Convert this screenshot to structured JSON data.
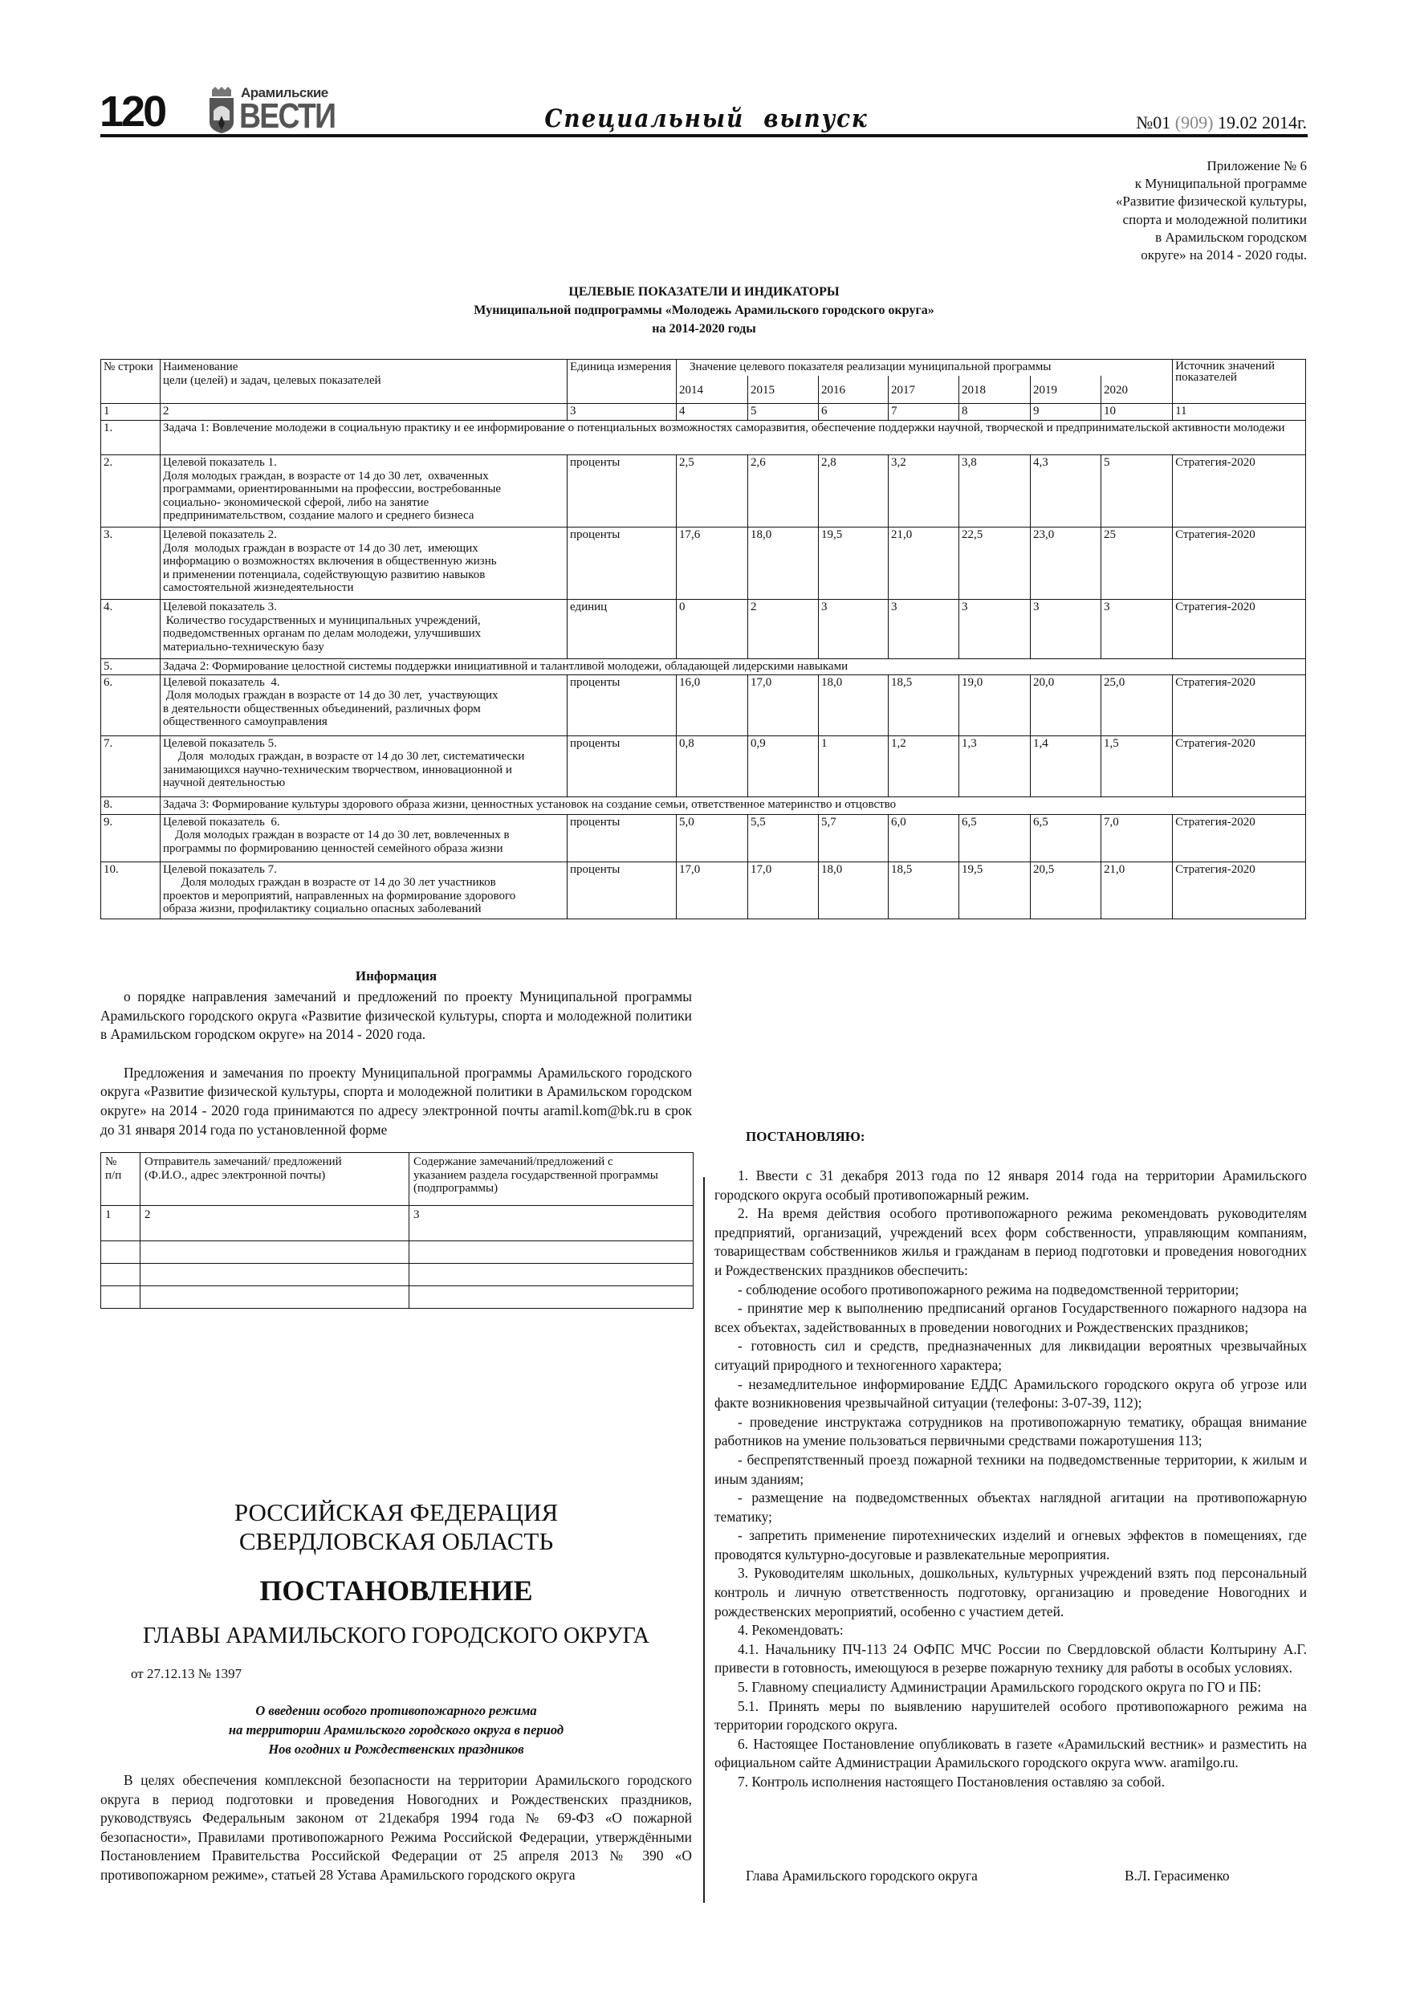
{
  "header": {
    "page_number": "120",
    "logo": {
      "line1": "Арамильские",
      "line2": "ВЕСТИ"
    },
    "section": "Специальный выпуск",
    "issue_prefix": "№01 ",
    "issue_total": "(909)",
    "issue_date": " 19.02 2014г."
  },
  "appendix": [
    "Приложение № 6",
    "к Муниципальной программе",
    "«Развитие физической культуры,",
    "спорта и молодежной политики",
    "в Арамильском городском",
    "округе» на 2014 - 2020 годы."
  ],
  "indicators": {
    "title": "ЦЕЛЕВЫЕ ПОКАЗАТЕЛИ И ИНДИКАТОРЫ",
    "subtitle": "Муниципальной подпрограммы «Молодежь Арамильского городского округа»",
    "period": "на 2014-2020 годы",
    "headers": {
      "row_no": "№ строки",
      "name": "Наименование\n цели (целей) и задач, целевых   показателей",
      "unit": "Единица измерения",
      "value_group": "Значение целевого показателя реализации   муниципальной программы",
      "years": [
        "2014",
        "2015",
        "2016",
        "2017",
        "2018",
        "2019",
        "2020"
      ],
      "source": "Источник значений показателей"
    },
    "column_numbers": [
      "1",
      "2",
      "3",
      "4",
      "5",
      "6",
      "7",
      "8",
      "9",
      "10",
      "11"
    ],
    "rows": [
      {
        "type": "task",
        "no": "1.",
        "text": "Задача 1: Вовлечение молодежи в социальную практику и ее информирование о потенциальных возможностях саморазвития, обеспечение поддержки научной, творческой и предпринимательской активности молодежи"
      },
      {
        "type": "indicator",
        "no": "2.",
        "text": "Целевой показатель 1.\nДоля молодых граждан, в возрасте от 14 до 30 лет,  охваченных\nпрограммами, ориентированными на профессии, востребованные\nсоциально- экономической сферой, либо на занятие\nпредпринимательством, создание малого и среднего бизнеса",
        "unit": "проценты",
        "values": [
          "2,5",
          "2,6",
          "2,8",
          "3,2",
          "3,8",
          "4,3",
          "5"
        ],
        "source": "Стратегия-2020"
      },
      {
        "type": "indicator",
        "no": "3.",
        "text": "Целевой показатель 2.\nДоля  молодых граждан в возрасте от 14 до 30 лет,  имеющих\nинформацию о возможностях включения в общественную жизнь\nи применении потенциала, содействующую развитию навыков\nсамостоятельной жизнедеятельности",
        "unit": "проценты",
        "values": [
          "17,6",
          "18,0",
          "19,5",
          "21,0",
          "22,5",
          "23,0",
          "25"
        ],
        "source": "Стратегия-2020"
      },
      {
        "type": "indicator",
        "no": "4.",
        "text": "Целевой показатель 3.\n Количество государственных и муниципальных учреждений,\nподведомственных органам по делам молодежи, улучшивших\nматериально-техническую базу",
        "unit": "единиц",
        "values": [
          "0",
          "2",
          "3",
          "3",
          "3",
          "3",
          "3"
        ],
        "source": "Стратегия-2020"
      },
      {
        "type": "task",
        "no": "5.",
        "text": "Задача 2:  Формирование  целостной системы поддержки инициативной и талантливой молодежи, обладающей лидерскими навыками"
      },
      {
        "type": "indicator",
        "no": "6.",
        "text": "Целевой показатель  4.\n Доля молодых граждан в возрасте от 14 до 30 лет,  участвующих\nв деятельности общественных объединений, различных форм\nобщественного самоуправления",
        "unit": "проценты",
        "values": [
          "16,0",
          "17,0",
          "18,0",
          "18,5",
          "19,0",
          "20,0",
          "25,0"
        ],
        "source": "Стратегия-2020"
      },
      {
        "type": "indicator",
        "no": "7.",
        "text": "Целевой показатель 5.\n     Доля  молодых граждан, в возрасте от 14 до 30 лет, систематически\nзанимающихся научно-техническим творчеством, инновационной и\nнаучной деятельностью",
        "unit": "проценты",
        "values": [
          "0,8",
          "0,9",
          "1",
          "1,2",
          "1,3",
          "1,4",
          "1,5"
        ],
        "source": "Стратегия-2020"
      },
      {
        "type": "task",
        "no": "8.",
        "text": "Задача  3:  Формирование культуры здорового образа жизни, ценностных установок на создание семьи, ответственное материнство и отцовство"
      },
      {
        "type": "indicator",
        "no": "9.",
        "text": "Целевой показатель  6.\n    Доля молодых граждан в возрасте от 14 до 30 лет, вовлеченных в\nпрограммы по формированию ценностей семейного образа жизни",
        "unit": "проценты",
        "values": [
          "5,0",
          "5,5",
          "5,7",
          "6,0",
          "6,5",
          "6,5",
          "7,0"
        ],
        "source": "Стратегия-2020"
      },
      {
        "type": "indicator",
        "no": "10.",
        "text": "Целевой показатель 7.\n      Доля молодых граждан в возрасте от 14 до 30 лет участников\nпроектов и мероприятий, направленных на формирование здорового\nобраза жизни, профилактику социально опасных заболеваний",
        "unit": "проценты",
        "values": [
          "17,0",
          "17,0",
          "18,0",
          "18,5",
          "19,5",
          "20,5",
          "21,0"
        ],
        "source": "Стратегия-2020"
      }
    ]
  },
  "information": {
    "title": "Информация",
    "paragraphs": [
      "о порядке направления замечаний и предложений по проекту Муниципальной программы Арамильского городского округа «Развитие физической культуры, спорта и молодежной политики в  Арамильском городском округе» на 2014 - 2020 года.",
      "Предложения и замечания по проекту Муниципальной программы Арамильского городского округа «Развитие физической культуры, спорта и молодежной политики в Арамильском городском округе» на 2014 - 2020 года принимаются по адресу электронной почты aramil.kom@bk.ru в срок до 31 января 2014 года по установленной форме"
    ],
    "form_table": {
      "headers": [
        "№\nп/п",
        "Отправитель замечаний/ предложений\n(Ф.И.О., адрес электронной почты)",
        "Содержание замечаний/предложений с\nуказанием раздела государственной программы\n(подпрограммы)"
      ],
      "numbers": [
        "1",
        "2",
        "3"
      ],
      "empty_rows": 3
    }
  },
  "decree": {
    "country": "РОССИЙСКАЯ ФЕДЕРАЦИЯ",
    "region": "СВЕРДЛОВСКАЯ ОБЛАСТЬ",
    "title": "ПОСТАНОВЛЕНИЕ",
    "issuer": "ГЛАВЫ АРАМИЛЬСКОГО ГОРОДСКОГО ОКРУГА",
    "date_number": "от 27.12.13 № 1397",
    "subject": [
      "О введении особого противопожарного режима",
      "на территории Арамильского городского округа в период",
      "Нов огодних и Рождественских  праздников"
    ],
    "preamble": "В целях обеспечения комплексной безопасности на территории Арамильского городского округа в период подготовки и проведения Новогодних и Рождественских праздников, руководствуясь Федеральным законом от 21декабря 1994 года № 69-ФЗ «О пожарной безопасности»,  Правилами противопожарного Режима Российской Федерации, утверждёнными Постановлением Правительства Российской Федерации от 25 апреля 2013 № 390 «О противопожарном режиме», статьей 28 Устава Арамильского городского округа",
    "resolve": "ПОСТАНОВЛЯЮ:",
    "items": [
      "1. Ввести с 31 декабря 2013 года по 12 января  2014 года на территории Арамильского городского округа особый противопожарный режим.",
      "2. На время действия особого противопожарного режима рекомендовать руководителям предприятий, организаций, учреждений всех форм собственности, управляющим компаниям, товариществам собственников жилья и гражданам в период подготовки и проведения новогодних и Рождественских праздников обеспечить:",
      "- соблюдение особого противопожарного режима на подведомственной территории;",
      "- принятие мер к выполнению предписаний органов Государственного пожарного надзора на всех объектах, задействованных в проведении новогодних и Рождественских праздников;",
      "- готовность сил и средств, предназначенных для ликвидации вероятных чрезвычайных ситуаций природного и техногенного характера;",
      "- незамедлительное информирование ЕДДС Арамильского городского округа об угрозе или факте возникновения чрезвычайной ситуации (телефоны: 3-07-39, 112);",
      "- проведение инструктажа сотрудников на противопожарную тематику, обращая внимание работников на умение пользоваться первичными средствами пожаротушения 113;",
      "- беспрепятственный проезд пожарной техники на подведомственные территории, к жилым и иным зданиям;",
      "- размещение на подведомственных объектах наглядной агитации на противопожарную тематику;",
      "- запретить применение пиротехнических изделий и огневых эффектов в помещениях, где проводятся культурно-досуговые и развлекательные мероприятия.",
      "3. Руководителям школьных, дошкольных, культурных учреждений взять под персональный контроль и личную ответственность подготовку, организацию и проведение Новогодних и рождественских мероприятий, особенно с участием детей.",
      "4. Рекомендовать:",
      "4.1. Начальнику ПЧ-113 24 ОФПС МЧС России по Свердловской области Колтырину А.Г.  привести в готовность, имеющуюся в резерве пожарную технику для работы в особых условиях.",
      "5. Главному специалисту Администрации Арамильского городского округа по ГО и ПБ:",
      "5.1. Принять меры по выявлению нарушителей особого противопожарного режима на территории городского округа.",
      "6. Настоящее  Постановление опубликовать в газете «Арамильский вестник» и разместить на официальном сайте Администрации Арамильского городского округа www. aramilgo.ru.",
      "7. Контроль исполнения настоящего Постановления оставляю за собой."
    ],
    "signature_title": "Глава Арамильского городского округа",
    "signature_name": "В.Л. Герасименко"
  },
  "colors": {
    "text": "#111111",
    "issue_gray": "#888888",
    "logo_gray": "#555555"
  }
}
